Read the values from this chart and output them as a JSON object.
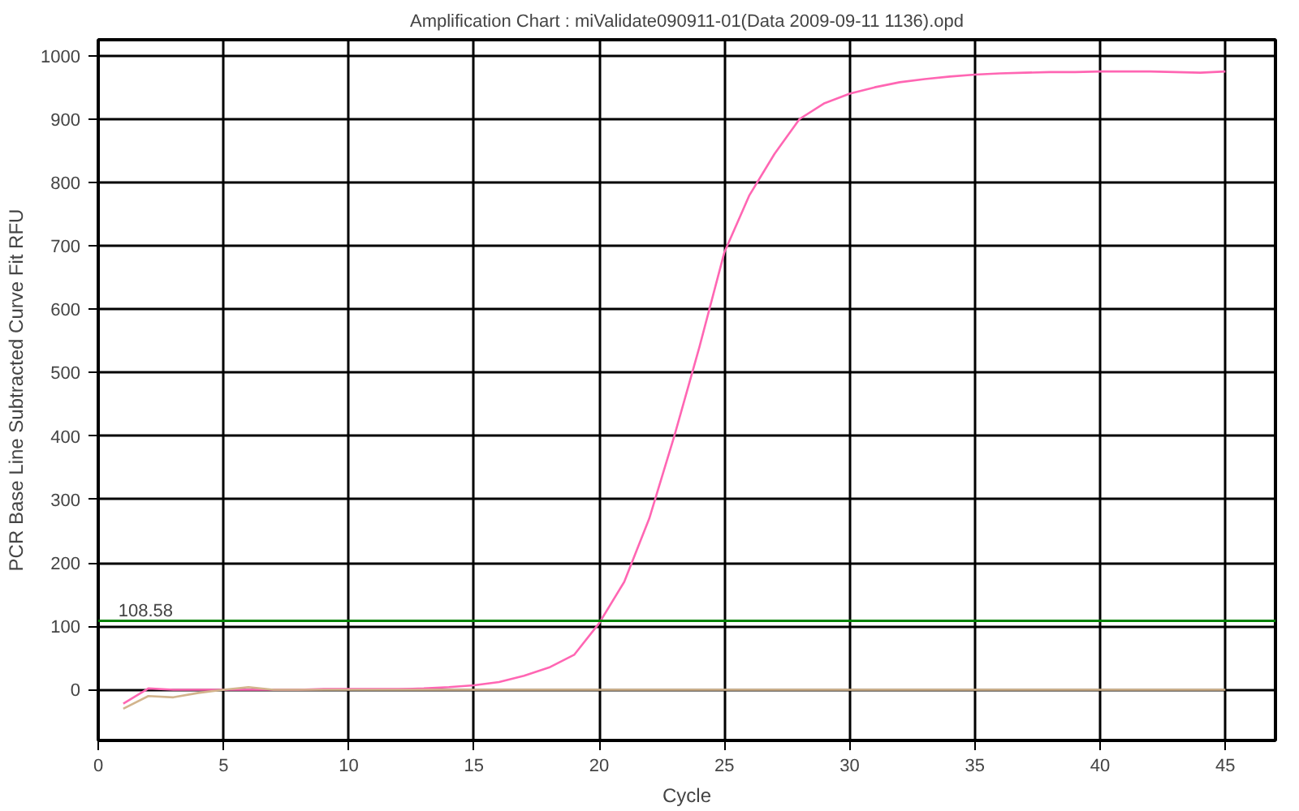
{
  "chart_data": {
    "type": "line",
    "title": "Amplification Chart : miValidate090911-01(Data 2009-09-11 1136).opd",
    "xlabel": "Cycle",
    "ylabel": "PCR Base Line Subtracted Curve Fit RFU",
    "xlim": [
      0,
      47
    ],
    "ylim": [
      -80,
      1025
    ],
    "xticks": [
      0,
      5,
      10,
      15,
      20,
      25,
      30,
      35,
      40,
      45
    ],
    "yticks": [
      0,
      100,
      200,
      300,
      400,
      500,
      600,
      700,
      800,
      900,
      1000
    ],
    "grid": true,
    "marker": "none",
    "line_style": "solid",
    "x": [
      1,
      2,
      3,
      4,
      5,
      6,
      7,
      8,
      9,
      10,
      11,
      12,
      13,
      14,
      15,
      16,
      17,
      18,
      19,
      20,
      21,
      22,
      23,
      24,
      25,
      26,
      27,
      28,
      29,
      30,
      31,
      32,
      33,
      34,
      35,
      36,
      37,
      38,
      39,
      40,
      41,
      42,
      43,
      44,
      45
    ],
    "series": [
      {
        "color": "#ff66b3",
        "values": [
          -22,
          2,
          0,
          0,
          0,
          0,
          0,
          0,
          1,
          1,
          1,
          1,
          2,
          4,
          7,
          12,
          22,
          35,
          55,
          105,
          170,
          270,
          400,
          540,
          690,
          780,
          845,
          900,
          925,
          940,
          950,
          958,
          963,
          967,
          970,
          972,
          973,
          974,
          974,
          975,
          975,
          975,
          974,
          973,
          975
        ]
      },
      {
        "color": "#d2b48c",
        "values": [
          -30,
          -10,
          -12,
          -5,
          0,
          4,
          0,
          0,
          0,
          0,
          0,
          0,
          0,
          0,
          0,
          0,
          0,
          0,
          0,
          0,
          0,
          0,
          0,
          0,
          0,
          0,
          0,
          0,
          0,
          0,
          0,
          0,
          0,
          0,
          0,
          0,
          0,
          0,
          0,
          0,
          0,
          0,
          0,
          0,
          0
        ]
      }
    ],
    "ref_lines": [
      {
        "axis": "y",
        "value": 108.58,
        "label": "108.58",
        "color": "#008000"
      }
    ]
  }
}
